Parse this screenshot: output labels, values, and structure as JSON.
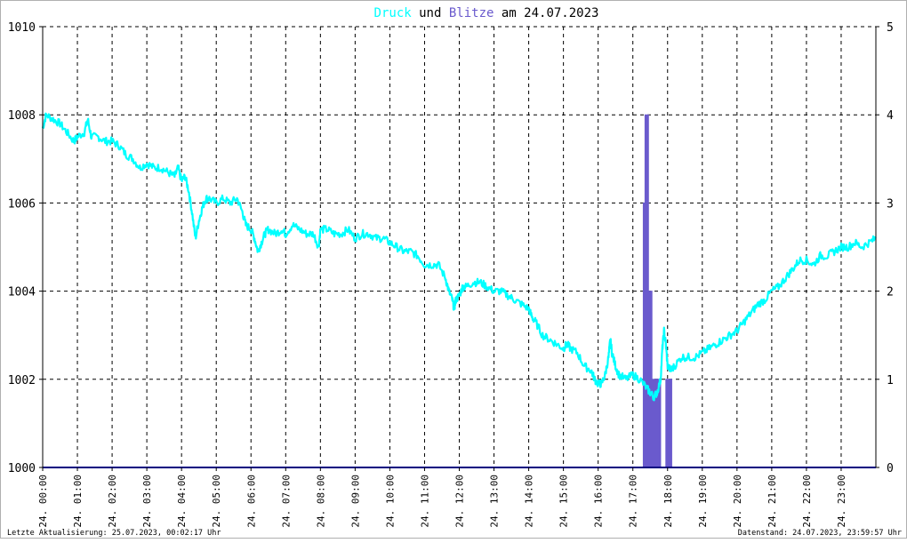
{
  "title": {
    "part1": "Druck",
    "part2": " und ",
    "part3": "Blitze",
    "part4": " am 24.07.2023"
  },
  "footer": {
    "left": "Letzte Aktualisierung: 25.07.2023, 00:02:17 Uhr",
    "right": "Datenstand: 24.07.2023, 23:59:57 Uhr"
  },
  "colors": {
    "pressure": "#00ffff",
    "lightning": "#6a5acd",
    "baseline": "#000080",
    "grid": "#000000",
    "text": "#000000"
  },
  "chart_data": {
    "type": "line",
    "x_unit": "hours",
    "x_range": [
      0,
      24
    ],
    "y_left": {
      "min": 1000,
      "max": 1010,
      "ticks": [
        "1000",
        "1002",
        "1004",
        "1006",
        "1008",
        "1010"
      ]
    },
    "y_right": {
      "min": 0,
      "max": 5,
      "ticks": [
        "0",
        "1",
        "2",
        "3",
        "4",
        "5"
      ]
    },
    "x_ticks": [
      "24. 00:00",
      "24. 01:00",
      "24. 02:00",
      "24. 03:00",
      "24. 04:00",
      "24. 05:00",
      "24. 06:00",
      "24. 07:00",
      "24. 08:00",
      "24. 09:00",
      "24. 10:00",
      "24. 11:00",
      "24. 12:00",
      "24. 13:00",
      "24. 14:00",
      "24. 15:00",
      "24. 16:00",
      "24. 17:00",
      "24. 18:00",
      "24. 19:00",
      "24. 20:00",
      "24. 21:00",
      "24. 22:00",
      "24. 23:00"
    ],
    "grid": true,
    "series": [
      {
        "name": "Druck",
        "axis": "left",
        "points": [
          [
            0.0,
            1007.7
          ],
          [
            0.1,
            1008.0
          ],
          [
            0.3,
            1007.9
          ],
          [
            0.5,
            1007.8
          ],
          [
            0.7,
            1007.6
          ],
          [
            0.9,
            1007.4
          ],
          [
            1.0,
            1007.5
          ],
          [
            1.2,
            1007.6
          ],
          [
            1.3,
            1007.9
          ],
          [
            1.4,
            1007.5
          ],
          [
            1.6,
            1007.5
          ],
          [
            1.8,
            1007.4
          ],
          [
            2.0,
            1007.4
          ],
          [
            2.2,
            1007.3
          ],
          [
            2.4,
            1007.1
          ],
          [
            2.6,
            1007.0
          ],
          [
            2.8,
            1006.8
          ],
          [
            3.0,
            1006.9
          ],
          [
            3.2,
            1006.8
          ],
          [
            3.4,
            1006.8
          ],
          [
            3.6,
            1006.7
          ],
          [
            3.8,
            1006.6
          ],
          [
            3.9,
            1006.8
          ],
          [
            4.0,
            1006.5
          ],
          [
            4.1,
            1006.6
          ],
          [
            4.2,
            1006.3
          ],
          [
            4.3,
            1005.8
          ],
          [
            4.4,
            1005.2
          ],
          [
            4.5,
            1005.6
          ],
          [
            4.6,
            1005.9
          ],
          [
            4.7,
            1006.1
          ],
          [
            4.8,
            1006.1
          ],
          [
            5.0,
            1006.0
          ],
          [
            5.2,
            1006.1
          ],
          [
            5.4,
            1006.0
          ],
          [
            5.6,
            1006.1
          ],
          [
            5.75,
            1005.8
          ],
          [
            5.85,
            1005.5
          ],
          [
            6.0,
            1005.4
          ],
          [
            6.1,
            1005.2
          ],
          [
            6.2,
            1004.9
          ],
          [
            6.3,
            1005.1
          ],
          [
            6.4,
            1005.3
          ],
          [
            6.5,
            1005.4
          ],
          [
            6.7,
            1005.3
          ],
          [
            6.9,
            1005.4
          ],
          [
            7.0,
            1005.3
          ],
          [
            7.2,
            1005.5
          ],
          [
            7.4,
            1005.4
          ],
          [
            7.6,
            1005.3
          ],
          [
            7.8,
            1005.3
          ],
          [
            7.95,
            1005.0
          ],
          [
            8.0,
            1005.4
          ],
          [
            8.2,
            1005.4
          ],
          [
            8.4,
            1005.3
          ],
          [
            8.6,
            1005.3
          ],
          [
            8.8,
            1005.4
          ],
          [
            9.0,
            1005.2
          ],
          [
            9.2,
            1005.3
          ],
          [
            9.4,
            1005.3
          ],
          [
            9.6,
            1005.2
          ],
          [
            9.8,
            1005.2
          ],
          [
            10.0,
            1005.1
          ],
          [
            10.2,
            1005.0
          ],
          [
            10.4,
            1004.9
          ],
          [
            10.6,
            1004.9
          ],
          [
            10.8,
            1004.8
          ],
          [
            11.0,
            1004.6
          ],
          [
            11.2,
            1004.6
          ],
          [
            11.4,
            1004.6
          ],
          [
            11.6,
            1004.3
          ],
          [
            11.7,
            1004.0
          ],
          [
            11.8,
            1003.8
          ],
          [
            11.85,
            1003.6
          ],
          [
            11.9,
            1003.8
          ],
          [
            12.0,
            1003.9
          ],
          [
            12.1,
            1004.1
          ],
          [
            12.2,
            1004.1
          ],
          [
            12.4,
            1004.2
          ],
          [
            12.6,
            1004.2
          ],
          [
            12.8,
            1004.1
          ],
          [
            13.0,
            1004.0
          ],
          [
            13.2,
            1004.0
          ],
          [
            13.4,
            1003.9
          ],
          [
            13.6,
            1003.8
          ],
          [
            13.8,
            1003.7
          ],
          [
            14.0,
            1003.6
          ],
          [
            14.1,
            1003.4
          ],
          [
            14.2,
            1003.3
          ],
          [
            14.4,
            1003.0
          ],
          [
            14.6,
            1002.9
          ],
          [
            14.8,
            1002.8
          ],
          [
            15.0,
            1002.7
          ],
          [
            15.1,
            1002.8
          ],
          [
            15.2,
            1002.7
          ],
          [
            15.4,
            1002.6
          ],
          [
            15.6,
            1002.3
          ],
          [
            15.8,
            1002.2
          ],
          [
            15.9,
            1002.0
          ],
          [
            16.0,
            1001.9
          ],
          [
            16.1,
            1001.9
          ],
          [
            16.2,
            1002.1
          ],
          [
            16.3,
            1002.5
          ],
          [
            16.35,
            1002.9
          ],
          [
            16.4,
            1002.6
          ],
          [
            16.5,
            1002.3
          ],
          [
            16.6,
            1002.1
          ],
          [
            16.8,
            1002.0
          ],
          [
            17.0,
            1002.1
          ],
          [
            17.2,
            1002.0
          ],
          [
            17.4,
            1001.8
          ],
          [
            17.5,
            1001.7
          ],
          [
            17.6,
            1001.6
          ],
          [
            17.7,
            1001.7
          ],
          [
            17.8,
            1002.0
          ],
          [
            17.85,
            1002.7
          ],
          [
            17.9,
            1003.1
          ],
          [
            17.95,
            1002.8
          ],
          [
            18.0,
            1002.3
          ],
          [
            18.1,
            1002.2
          ],
          [
            18.2,
            1002.3
          ],
          [
            18.4,
            1002.5
          ],
          [
            18.6,
            1002.5
          ],
          [
            18.8,
            1002.5
          ],
          [
            19.0,
            1002.6
          ],
          [
            19.2,
            1002.7
          ],
          [
            19.4,
            1002.8
          ],
          [
            19.6,
            1002.9
          ],
          [
            19.8,
            1003.0
          ],
          [
            20.0,
            1003.1
          ],
          [
            20.2,
            1003.3
          ],
          [
            20.4,
            1003.5
          ],
          [
            20.6,
            1003.7
          ],
          [
            20.8,
            1003.8
          ],
          [
            21.0,
            1004.0
          ],
          [
            21.2,
            1004.1
          ],
          [
            21.4,
            1004.3
          ],
          [
            21.6,
            1004.5
          ],
          [
            21.8,
            1004.7
          ],
          [
            22.0,
            1004.7
          ],
          [
            22.2,
            1004.6
          ],
          [
            22.4,
            1004.8
          ],
          [
            22.6,
            1004.8
          ],
          [
            22.8,
            1004.9
          ],
          [
            23.0,
            1005.0
          ],
          [
            23.2,
            1005.0
          ],
          [
            23.4,
            1005.1
          ],
          [
            23.6,
            1005.0
          ],
          [
            23.8,
            1005.1
          ],
          [
            24.0,
            1005.2
          ]
        ]
      },
      {
        "name": "Blitze",
        "axis": "right",
        "points": [
          [
            0.0,
            0
          ],
          [
            17.25,
            0
          ],
          [
            17.3,
            3
          ],
          [
            17.35,
            4
          ],
          [
            17.4,
            4
          ],
          [
            17.45,
            2
          ],
          [
            17.5,
            2
          ],
          [
            17.55,
            1
          ],
          [
            17.75,
            1
          ],
          [
            17.8,
            0
          ],
          [
            17.92,
            0
          ],
          [
            17.95,
            1
          ],
          [
            18.1,
            1
          ],
          [
            18.12,
            0
          ],
          [
            24.0,
            0
          ]
        ]
      }
    ]
  }
}
